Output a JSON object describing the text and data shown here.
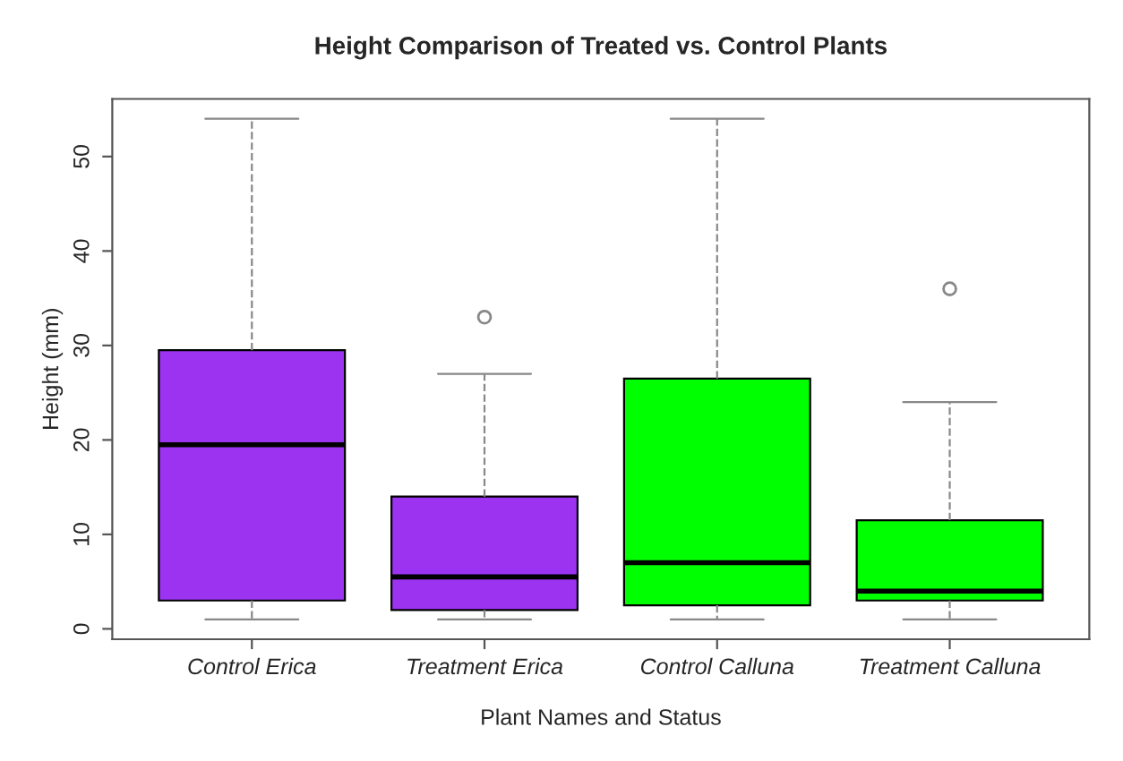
{
  "chart_data": {
    "type": "box",
    "title": "Height Comparison of Treated vs. Control Plants",
    "xlabel": "Plant Names and Status",
    "ylabel": "Height (mm)",
    "categories": [
      "Control Erica",
      "Treatment Erica",
      "Control Calluna",
      "Treatment Calluna"
    ],
    "colors": [
      "#9b33f0",
      "#9b33f0",
      "#00ff00",
      "#00ff00"
    ],
    "boxes": [
      {
        "low": 1,
        "q1": 3,
        "median": 19.5,
        "q3": 29.5,
        "high": 54
      },
      {
        "low": 1,
        "q1": 2,
        "median": 5.5,
        "q3": 14,
        "high": 27,
        "outliers": [
          33
        ]
      },
      {
        "low": 1,
        "q1": 2.5,
        "median": 7,
        "q3": 26.5,
        "high": 54
      },
      {
        "low": 1,
        "q1": 3,
        "median": 4,
        "q3": 11.5,
        "high": 24,
        "outliers": [
          36
        ]
      }
    ],
    "ylim": [
      -1.1,
      56.1
    ],
    "yticks": [
      0,
      10,
      20,
      30,
      40,
      50
    ],
    "grid": false
  }
}
